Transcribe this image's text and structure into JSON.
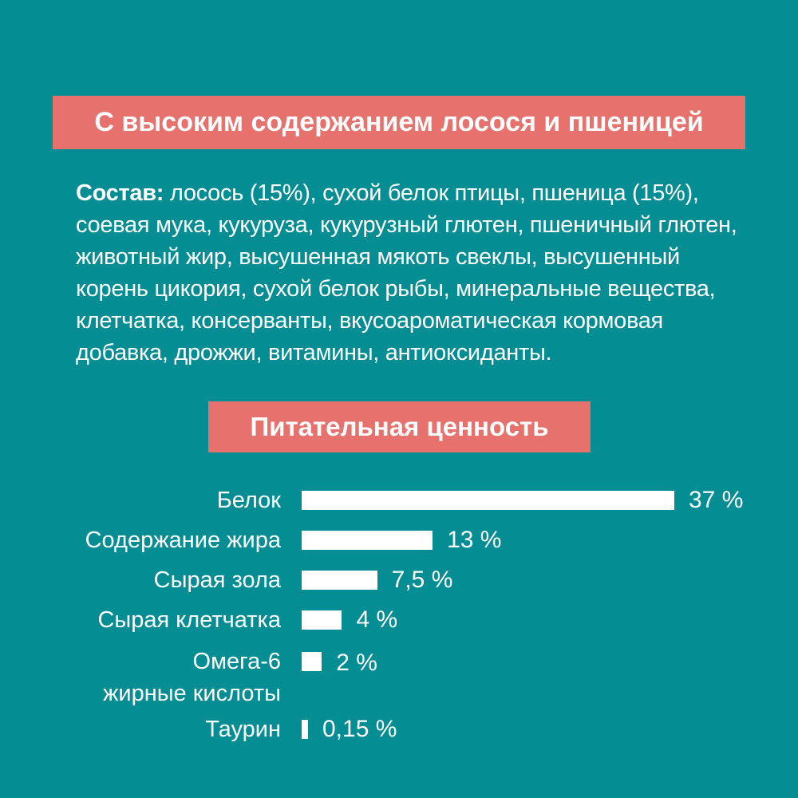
{
  "page": {
    "background_color": "#058d94",
    "accent_color": "#e7716d",
    "bar_color": "#ffffff",
    "text_color": "#ffffff"
  },
  "header_banner": {
    "title": "С высоким содержанием лосося и пшеницей"
  },
  "composition": {
    "label": "Состав:",
    "line1_rest": " лосось (15%), сухой белок птицы, пшеница (15%),",
    "lines": [
      "соевая мука, кукуруза, кукурузный глютен, пшеничный глютен,",
      "животный жир, высушенная мякоть свеклы, высушенный",
      "корень цикория, сухой белок рыбы, минеральные вещества,",
      "клетчатка, консерванты, вкусоароматическая кормовая",
      "добавка, дрожжи, витамины, антиоксиданты."
    ]
  },
  "nutrition_banner": {
    "title": "Питательная ценность"
  },
  "chart_data": {
    "type": "bar",
    "orientation": "horizontal",
    "title": "Питательная ценность",
    "categories": [
      "Белок",
      "Содержание жира",
      "Сырая зола",
      "Сырая клетчатка",
      "Омега-6 жирные кислоты",
      "Таурин"
    ],
    "values": [
      37,
      13,
      7.5,
      4,
      2,
      0.15
    ],
    "value_labels": [
      "37 %",
      "13 %",
      "7,5 %",
      "4 %",
      "2 %",
      "0,15 %"
    ],
    "xlim": [
      0,
      37
    ],
    "grid": false,
    "legend": false,
    "bar_color": "#ffffff",
    "rows": [
      {
        "label_lines": [
          "Белок"
        ],
        "value": 37,
        "value_label": "37 %"
      },
      {
        "label_lines": [
          "Содержание жира"
        ],
        "value": 13,
        "value_label": "13 %"
      },
      {
        "label_lines": [
          "Сырая зола"
        ],
        "value": 7.5,
        "value_label": "7,5 %"
      },
      {
        "label_lines": [
          "Сырая клетчатка"
        ],
        "value": 4,
        "value_label": "4 %"
      },
      {
        "label_lines": [
          "Омега-6",
          "жирные кислоты"
        ],
        "value": 2,
        "value_label": "2 %"
      },
      {
        "label_lines": [
          "Таурин"
        ],
        "value": 0.15,
        "value_label": "0,15 %"
      }
    ]
  }
}
